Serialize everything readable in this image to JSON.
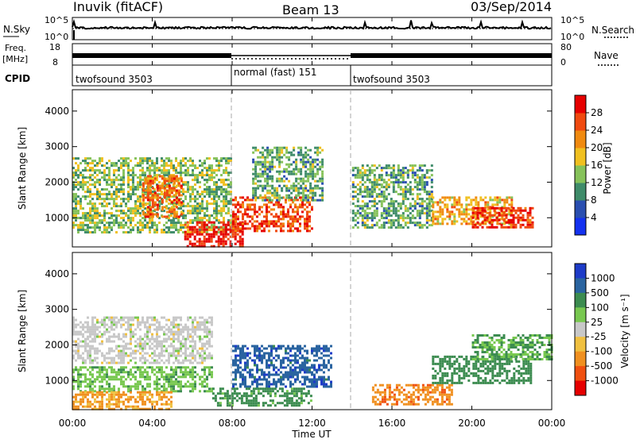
{
  "header": {
    "station": "Inuvik (fitACF)",
    "beam": "Beam 13",
    "date": "03/Sep/2014"
  },
  "strips": {
    "nsky_label": "N.Sky",
    "nsky_ticks": [
      "10^5",
      "10^0"
    ],
    "nsearch_label": "N.Search",
    "nsearch_ticks": [
      "10^5",
      "10^0"
    ],
    "freq_label_line1": "Freq.",
    "freq_label_line2": "[MHz]",
    "freq_ticks": [
      "18",
      "8"
    ],
    "nave_label": "Nave",
    "nave_ticks": [
      "80",
      "0"
    ],
    "cpid_label": "CPID",
    "cpid_segments": [
      {
        "label": "twofsound 3503",
        "start_hr": 0,
        "end_hr": 8
      },
      {
        "label": "normal (fast) 151",
        "start_hr": 8,
        "end_hr": 14
      },
      {
        "label": "twofsound 3503",
        "start_hr": 14,
        "end_hr": 24
      }
    ]
  },
  "power_panel": {
    "ylabel": "Slant Range [km]",
    "yticks": [
      "1000",
      "2000",
      "3000",
      "4000"
    ],
    "colorbar_label": "Power [dB]",
    "colorbar_ticks": [
      "4",
      "8",
      "12",
      "16",
      "20",
      "24",
      "28"
    ],
    "colorbar_colors": [
      "#1432f0",
      "#2a4fb0",
      "#3f8c6a",
      "#86c25a",
      "#f0c020",
      "#f08a10",
      "#f04a10",
      "#e60000"
    ]
  },
  "velocity_panel": {
    "ylabel": "Slant Range [km]",
    "yticks": [
      "1000",
      "2000",
      "3000",
      "4000"
    ],
    "colorbar_label": "Velocity [m s⁻¹]",
    "colorbar_ticks": [
      "1000",
      "500",
      "100",
      "25",
      "-25",
      "-100",
      "-500",
      "-1000"
    ],
    "colorbar_colors": [
      "#1e3cc8",
      "#2a64a0",
      "#3c8c50",
      "#78c850",
      "#c8c8c8",
      "#f0c040",
      "#f09020",
      "#f05010",
      "#e60000"
    ]
  },
  "xaxis": {
    "label": "Time UT",
    "ticks": [
      "00:00",
      "04:00",
      "08:00",
      "12:00",
      "16:00",
      "20:00",
      "00:00"
    ]
  },
  "chart_data": [
    {
      "type": "heatmap",
      "title": "Inuvik (fitACF) Beam 13 03/Sep/2014",
      "xlabel": "Time UT",
      "ylabel": "Slant Range [km]",
      "xlim": [
        0,
        24
      ],
      "ylim": [
        180,
        4600
      ],
      "colorbar": "Power [dB]",
      "clim": [
        0,
        30
      ],
      "regions": [
        {
          "t0": 0,
          "t1": 8,
          "r0": 600,
          "r1": 2700,
          "value": 14
        },
        {
          "t0": 5.6,
          "t1": 8.5,
          "r0": 200,
          "r1": 900,
          "value": 30
        },
        {
          "t0": 3.5,
          "t1": 5.5,
          "r0": 1000,
          "r1": 2200,
          "value": 24
        },
        {
          "t0": 8,
          "t1": 12,
          "r0": 600,
          "r1": 1600,
          "value": 26
        },
        {
          "t0": 9,
          "t1": 12.5,
          "r0": 1500,
          "r1": 3000,
          "value": 12
        },
        {
          "t0": 14,
          "t1": 18,
          "r0": 700,
          "r1": 2500,
          "value": 12
        },
        {
          "t0": 18,
          "t1": 22,
          "r0": 800,
          "r1": 1600,
          "value": 20
        },
        {
          "t0": 20,
          "t1": 23,
          "r0": 700,
          "r1": 1300,
          "value": 28
        }
      ]
    },
    {
      "type": "heatmap",
      "title": "Inuvik (fitACF) Beam 13 03/Sep/2014",
      "xlabel": "Time UT",
      "ylabel": "Slant Range [km]",
      "xlim": [
        0,
        24
      ],
      "ylim": [
        180,
        4600
      ],
      "colorbar": "Velocity [m s⁻¹]",
      "clim": [
        -1000,
        1000
      ],
      "regions": [
        {
          "t0": 0,
          "t1": 7,
          "r0": 1500,
          "r1": 2800,
          "value": 0
        },
        {
          "t0": 0,
          "t1": 7,
          "r0": 700,
          "r1": 1400,
          "value": 80
        },
        {
          "t0": 0,
          "t1": 5,
          "r0": 200,
          "r1": 700,
          "value": -120
        },
        {
          "t0": 8,
          "t1": 13,
          "r0": 800,
          "r1": 2000,
          "value": 800
        },
        {
          "t0": 7,
          "t1": 12,
          "r0": 300,
          "r1": 800,
          "value": 150
        },
        {
          "t0": 15,
          "t1": 19,
          "r0": 300,
          "r1": 900,
          "value": -400
        },
        {
          "t0": 18,
          "t1": 23,
          "r0": 900,
          "r1": 1700,
          "value": 300
        },
        {
          "t0": 20,
          "t1": 24,
          "r0": 1600,
          "r1": 2300,
          "value": 100
        }
      ]
    }
  ]
}
